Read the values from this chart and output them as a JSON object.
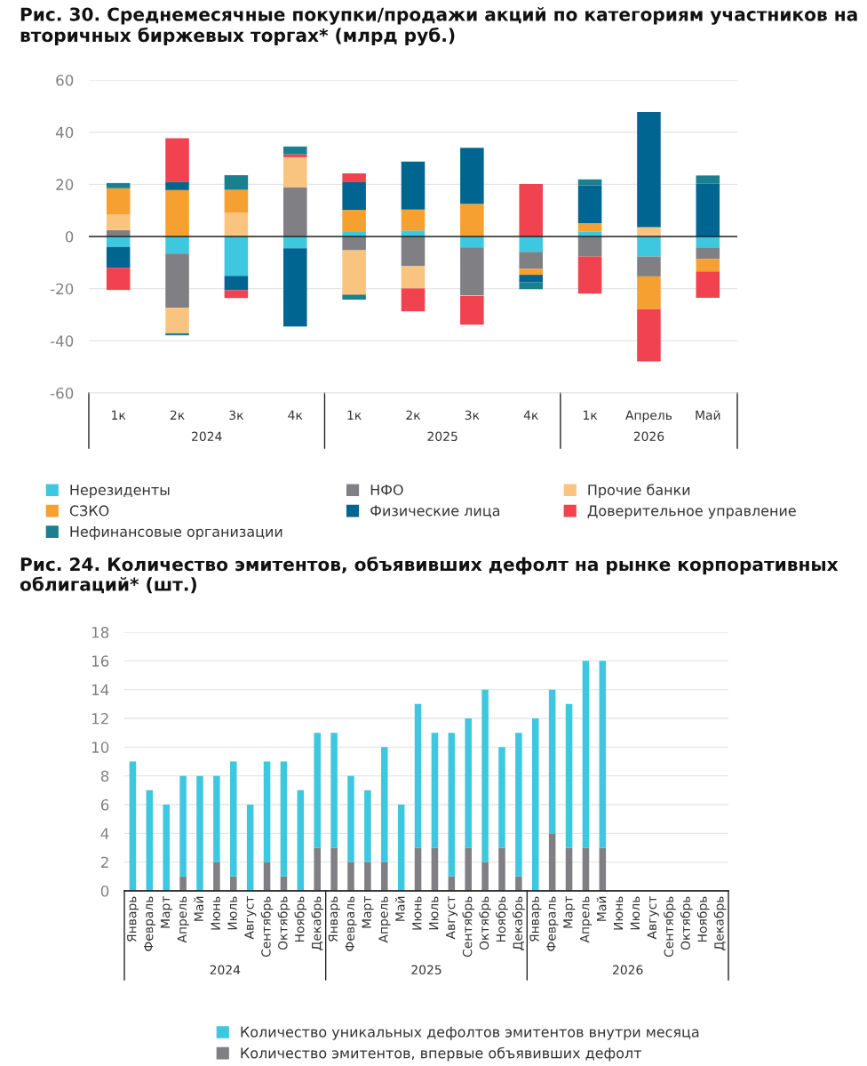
{
  "chart_data": [
    {
      "type": "bar",
      "stacked": true,
      "title": "Рис. 30. Среднемесячные покупки/продажи акций по категориям участников на вторичных биржевых торгах* (млрд руб.)",
      "categories": [
        "1к",
        "2к",
        "3к",
        "4к",
        "1к",
        "2к",
        "3к",
        "4к",
        "1к",
        "Апрель",
        "Май"
      ],
      "annotations": [
        "2024",
        "2025",
        "2026"
      ],
      "series": [
        {
          "name": "Нерезиденты",
          "color": "#3ec8e0",
          "values": [
            -4,
            -6.6,
            -15.1,
            -4.5,
            1.7,
            2.3,
            -4.2,
            -5.9,
            1.9,
            -7.7,
            -4.2
          ]
        },
        {
          "name": "НФО",
          "color": "#7f7f84",
          "values": [
            2.5,
            -20.7,
            0,
            18.9,
            -5.3,
            -11.4,
            -18.4,
            -6.5,
            -7.7,
            -7.6,
            -4.4
          ]
        },
        {
          "name": "Прочие банки",
          "color": "#f9c47f",
          "values": [
            6,
            -9.8,
            9.1,
            11.5,
            -17,
            -8.5,
            -0.2,
            0,
            0,
            3.6,
            0
          ]
        },
        {
          "name": "СЗКО",
          "color": "#f5a030",
          "values": [
            10,
            17.8,
            8.8,
            0,
            8.5,
            8,
            12.5,
            -2.3,
            3.2,
            -12.6,
            -4.8
          ]
        },
        {
          "name": "Физические лица",
          "color": "#006591",
          "values": [
            -8,
            3.2,
            -5.5,
            -30,
            10.6,
            18.4,
            21.5,
            -2.8,
            14.5,
            44.1,
            20.2
          ]
        },
        {
          "name": "Доверительное управление",
          "color": "#f0424f",
          "values": [
            -8.5,
            16.7,
            -3,
            1.1,
            3.4,
            -8.8,
            -11,
            20.1,
            -14.2,
            -20,
            -10.1
          ]
        },
        {
          "name": "Нефинансовые организации",
          "color": "#1a7f8e",
          "values": [
            2,
            -0.8,
            5.6,
            3,
            -1.9,
            0,
            0,
            -2.7,
            2.3,
            0,
            3.2
          ]
        }
      ],
      "ylim": [
        -60,
        60
      ],
      "yticks": [
        -60,
        -40,
        -20,
        0,
        20,
        40,
        60
      ],
      "grid": "y",
      "legend": "bottom",
      "ref_lines": [
        {
          "axis": "y",
          "value": 0,
          "color": "#222222"
        }
      ]
    },
    {
      "type": "bar",
      "stacked": true,
      "title": "Рис. 24. Количество эмитентов, объявивших дефолт на рынке корпоративных облигаций* (шт.)",
      "categories": [
        "Январь",
        "Февраль",
        "Март",
        "Апрель",
        "Май",
        "Июнь",
        "Июль",
        "Август",
        "Сентябрь",
        "Октябрь",
        "Ноябрь",
        "Декабрь",
        "Январь",
        "Февраль",
        "Март",
        "Апрель",
        "Май",
        "Июнь",
        "Июль",
        "Август",
        "Сентябрь",
        "Октябрь",
        "Ноябрь",
        "Декабрь",
        "Январь",
        "Февраль",
        "Март",
        "Апрель",
        "Май",
        "Июнь",
        "Июль",
        "Август",
        "Сентябрь",
        "Октябрь",
        "Ноябрь",
        "Декабрь"
      ],
      "annotations": [
        "2024",
        "2025",
        "2026"
      ],
      "series": [
        {
          "name": "Количество эмитентов, впервые объявивших дефолт",
          "color": "#7f7f84",
          "values": [
            0,
            0,
            0,
            1,
            0,
            2,
            1,
            0,
            2,
            1,
            0,
            3,
            3,
            2,
            2,
            2,
            0,
            3,
            3,
            1,
            3,
            2,
            3,
            1,
            0,
            4,
            3,
            3,
            3,
            null,
            null,
            null,
            null,
            null,
            null,
            null
          ]
        },
        {
          "name": "Количество уникальных дефолтов эмитентов внутри месяца",
          "color": "#3ec8e0",
          "values": [
            9,
            7,
            6,
            7,
            8,
            6,
            8,
            6,
            7,
            8,
            7,
            8,
            8,
            6,
            5,
            8,
            6,
            10,
            8,
            10,
            9,
            12,
            7,
            10,
            12,
            10,
            10,
            13,
            13,
            null,
            null,
            null,
            null,
            null,
            null,
            null
          ]
        }
      ],
      "ylim": [
        0,
        18
      ],
      "yticks": [
        0,
        2,
        4,
        6,
        8,
        10,
        12,
        14,
        16,
        18
      ],
      "grid": "y",
      "legend": "bottom"
    }
  ]
}
